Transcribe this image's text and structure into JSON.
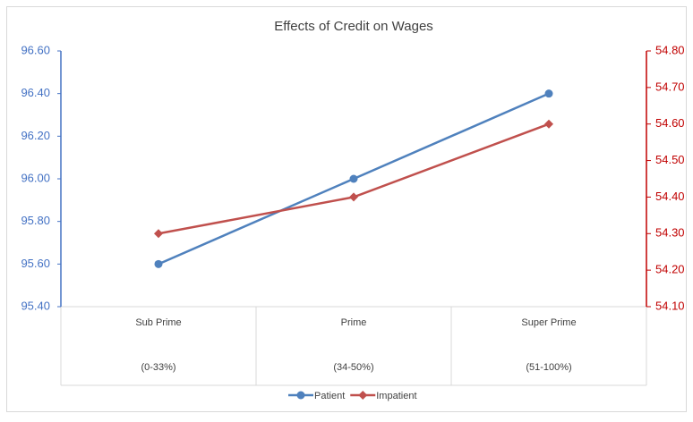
{
  "chart_data": {
    "type": "line",
    "title": "Effects of Credit on Wages",
    "categories": [
      [
        "Sub Prime",
        "(0-33%)"
      ],
      [
        "Prime",
        "(34-50%)"
      ],
      [
        "Super Prime",
        "(51-100%)"
      ]
    ],
    "series": [
      {
        "name": "Patient",
        "color": "#4f81bd",
        "marker": "circle",
        "values": [
          95.6,
          96.0,
          96.4
        ]
      },
      {
        "name": "Impatient",
        "color": "#c0504d",
        "marker": "diamond",
        "axis": "y2",
        "values": [
          54.3,
          54.4,
          54.6
        ]
      }
    ],
    "ylim": [
      95.4,
      96.6
    ],
    "yticks": [
      {
        "value": 95.4,
        "label": "95.40"
      },
      {
        "value": 95.6,
        "label": "95.60"
      },
      {
        "value": 95.8,
        "label": "95.80"
      },
      {
        "value": 96.0,
        "label": "96.00"
      },
      {
        "value": 96.2,
        "label": "96.20"
      },
      {
        "value": 96.4,
        "label": "96.40"
      },
      {
        "value": 96.6,
        "label": "96.60"
      }
    ],
    "y2lim": [
      54.1,
      54.8
    ],
    "y2ticks": [
      {
        "value": 54.1,
        "label": "54.10"
      },
      {
        "value": 54.2,
        "label": "54.20"
      },
      {
        "value": 54.3,
        "label": "54.30"
      },
      {
        "value": 54.4,
        "label": "54.40"
      },
      {
        "value": 54.5,
        "label": "54.50"
      },
      {
        "value": 54.6,
        "label": "54.60"
      },
      {
        "value": 54.7,
        "label": "54.70"
      },
      {
        "value": 54.8,
        "label": "54.80"
      }
    ],
    "y_axis_color": "#4472c4",
    "y2_axis_color": "#c00000",
    "legend": "bottom"
  }
}
